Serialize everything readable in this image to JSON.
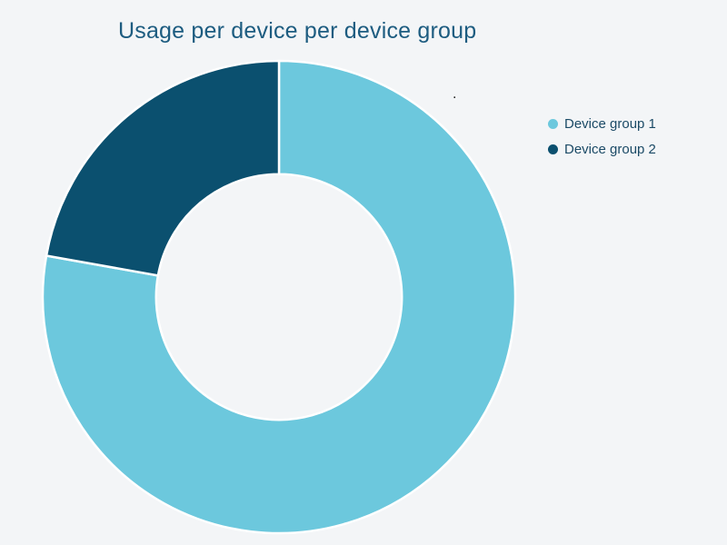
{
  "colors": {
    "background": "#f3f5f7",
    "title_text": "#1d5c80",
    "legend_text": "#1b4a66",
    "separator": "#ffffff"
  },
  "annotation": {
    "text": "."
  },
  "legend": {
    "position": "right",
    "items": [
      {
        "label": "Device group 1",
        "color": "#6cc8dd"
      },
      {
        "label": "Device group 2",
        "color": "#0b506f"
      }
    ]
  },
  "chart_data": {
    "type": "pie",
    "subtype": "donut",
    "title": "Usage per device per device group",
    "categories": [
      "Device group 1",
      "Device group 2"
    ],
    "values": [
      77.8,
      22.2
    ],
    "unit": "percent",
    "colors": [
      "#6cc8dd",
      "#0b506f"
    ],
    "start_angle_deg": 0,
    "direction": "clockwise",
    "inner_radius_pct": 52,
    "legend_position": "right",
    "grid": false
  }
}
